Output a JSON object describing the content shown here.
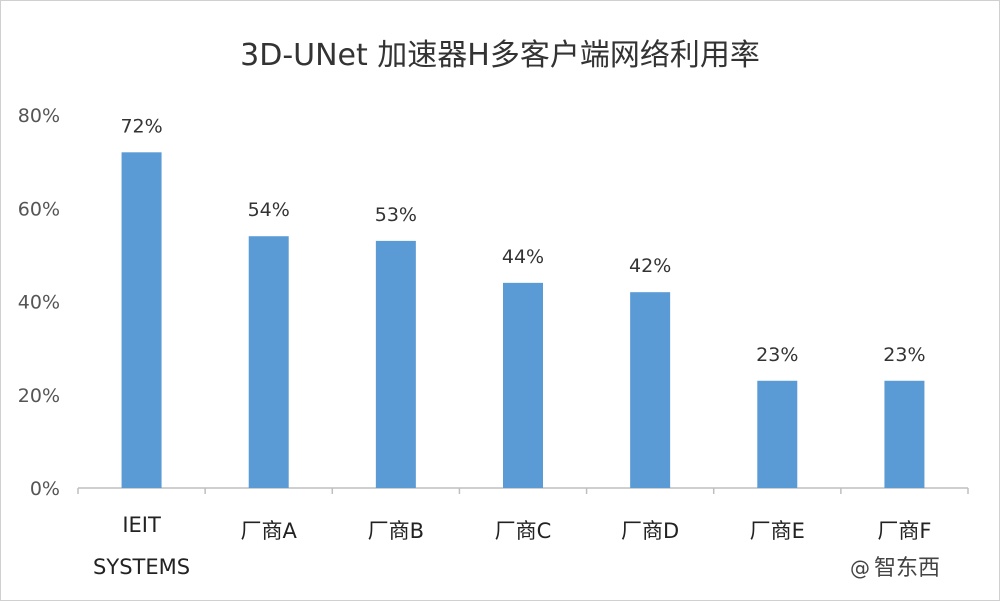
{
  "chart_data": {
    "type": "bar",
    "title": "3D-UNet 加速器H多客户端网络利用率",
    "categories": [
      "IEIT SYSTEMS",
      "厂商A",
      "厂商B",
      "厂商C",
      "厂商D",
      "厂商E",
      "厂商F"
    ],
    "values": [
      72,
      54,
      53,
      44,
      42,
      23,
      23
    ],
    "data_labels": [
      "72%",
      "54%",
      "53%",
      "44%",
      "42%",
      "23%",
      "23%"
    ],
    "ylim": [
      0,
      80
    ],
    "yticks": [
      "0%",
      "20%",
      "40%",
      "60%",
      "80%"
    ],
    "bar_color": "#5b9bd5",
    "grid": false,
    "legend": "none"
  },
  "watermark": {
    "symbol": "@",
    "text": "智东西"
  }
}
